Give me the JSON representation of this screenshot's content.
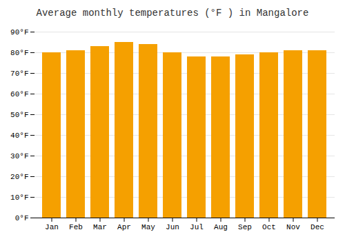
{
  "chart_data": {
    "type": "bar",
    "title": "Average monthly temperatures (°F ) in Mangalore",
    "categories": [
      "Jan",
      "Feb",
      "Mar",
      "Apr",
      "May",
      "Jun",
      "Jul",
      "Aug",
      "Sep",
      "Oct",
      "Nov",
      "Dec"
    ],
    "values": [
      80,
      81,
      83,
      85,
      84,
      80,
      78,
      78,
      79,
      80,
      81,
      81
    ],
    "color": "#F5A000",
    "ylim": [
      0,
      90
    ],
    "yticks": [
      {
        "value": 0,
        "label": "0°F"
      },
      {
        "value": 10,
        "label": "10°F"
      },
      {
        "value": 20,
        "label": "20°F"
      },
      {
        "value": 30,
        "label": "30°F"
      },
      {
        "value": 40,
        "label": "40°F"
      },
      {
        "value": 50,
        "label": "50°F"
      },
      {
        "value": 60,
        "label": "60°F"
      },
      {
        "value": 70,
        "label": "70°F"
      },
      {
        "value": 80,
        "label": "80°F"
      },
      {
        "value": 90,
        "label": "90°F"
      }
    ],
    "grid": true
  }
}
